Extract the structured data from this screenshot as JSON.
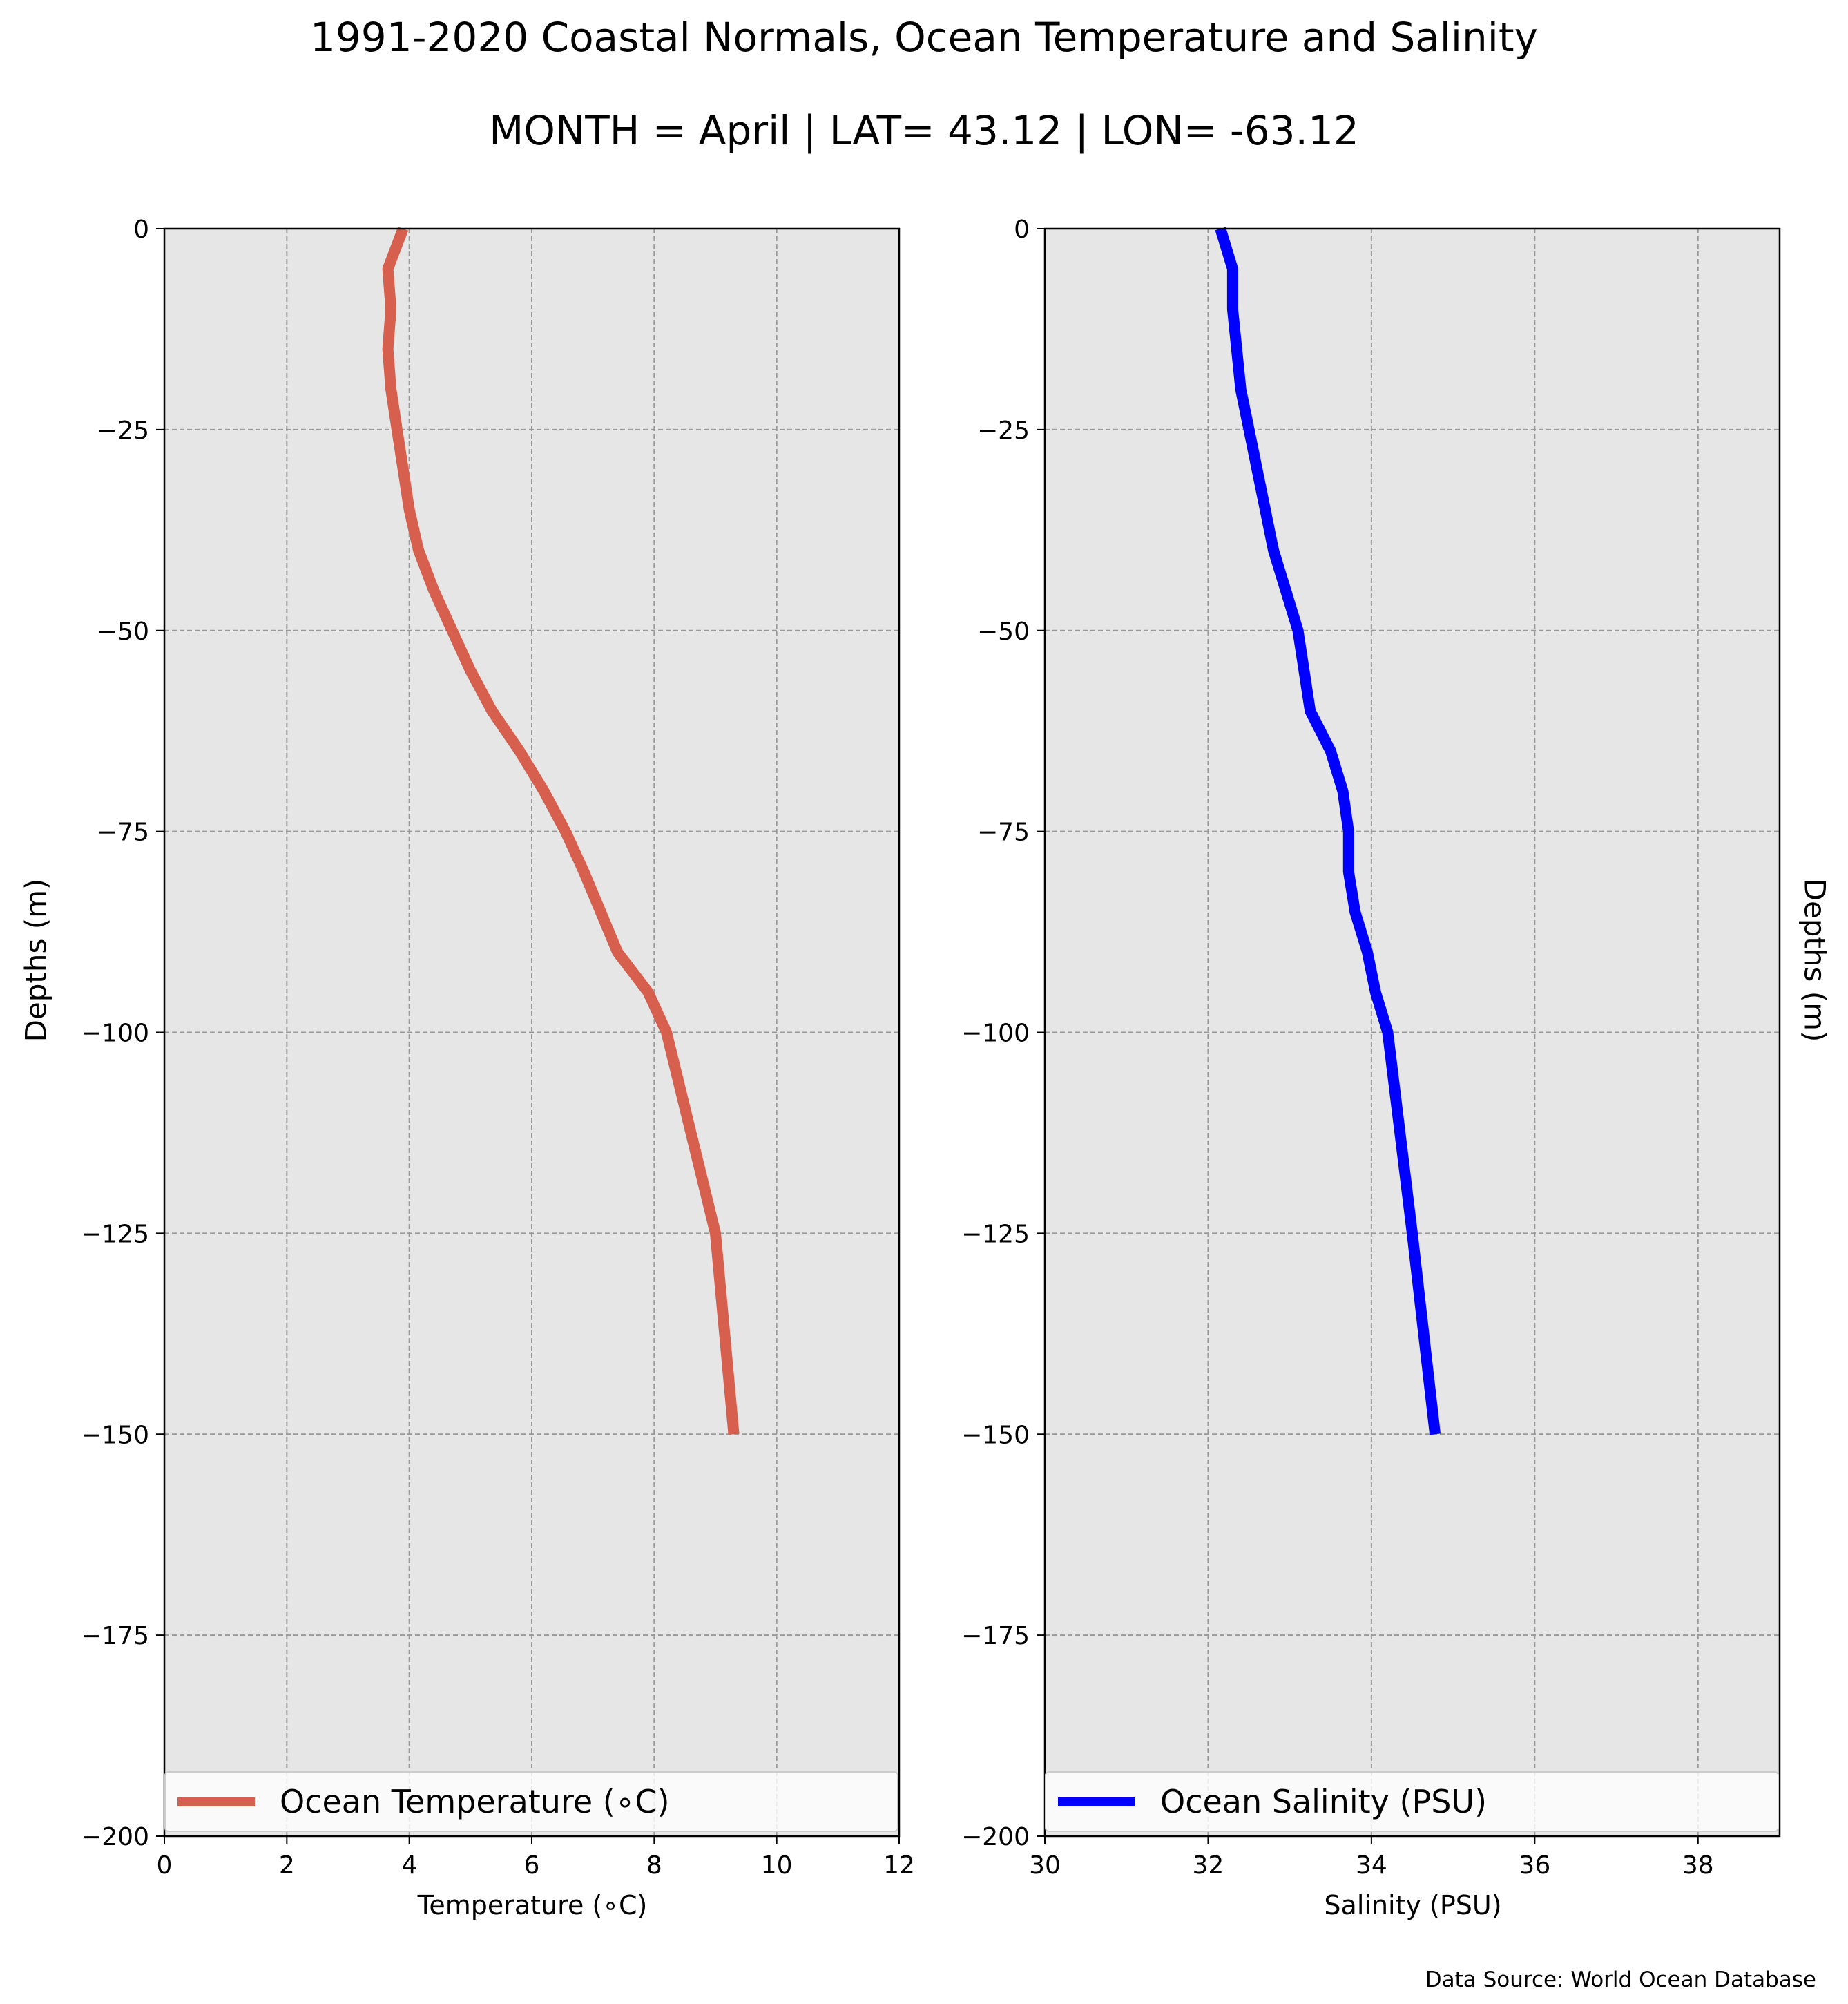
{
  "title": "1991-2020 Coastal Normals, Ocean Temperature and Salinity",
  "subtitle": "MONTH = April | LAT= 43.12 | LON= -63.12",
  "source": "Data Source: World Ocean Database",
  "chart_data": [
    {
      "type": "line",
      "xlabel": "Temperature (∘C)",
      "ylabel": "Depths (m)",
      "xlim": [
        0,
        12
      ],
      "ylim": [
        -200,
        0
      ],
      "x_ticks": [
        "0",
        "2",
        "4",
        "6",
        "8",
        "10",
        "12"
      ],
      "y_ticks": [
        "0",
        "−25",
        "−50",
        "−75",
        "−100",
        "−125",
        "−150",
        "−175",
        "−200"
      ],
      "grid": true,
      "legend_position": "lower center",
      "series": [
        {
          "name": "Ocean Temperature (∘C)",
          "color": "#d65f4e",
          "x": [
            3.9,
            3.65,
            3.7,
            3.65,
            3.7,
            3.8,
            3.9,
            4.0,
            4.15,
            4.4,
            4.7,
            5.0,
            5.35,
            5.8,
            6.2,
            6.55,
            6.85,
            7.4,
            7.9,
            8.2,
            8.6,
            9.0,
            9.3
          ],
          "y": [
            0,
            -5,
            -10,
            -15,
            -20,
            -25,
            -30,
            -35,
            -40,
            -45,
            -50,
            -55,
            -60,
            -65,
            -70,
            -75,
            -80,
            -90,
            -95,
            -100,
            -112.5,
            -125,
            -150
          ]
        }
      ]
    },
    {
      "type": "line",
      "xlabel": "Salinity (PSU)",
      "ylabel": "Depths (m)",
      "xlim": [
        30,
        39
      ],
      "ylim": [
        -200,
        0
      ],
      "x_ticks": [
        "30",
        "32",
        "34",
        "36",
        "38"
      ],
      "y_ticks": [
        "0",
        "−25",
        "−50",
        "−75",
        "−100",
        "−125",
        "−150",
        "−175",
        "−200"
      ],
      "grid": true,
      "legend_position": "lower center",
      "series": [
        {
          "name": "Ocean Salinity (PSU)",
          "color": "#0000ff",
          "x": [
            32.15,
            32.3,
            32.3,
            32.35,
            32.4,
            32.5,
            32.6,
            32.7,
            32.8,
            32.95,
            33.1,
            33.25,
            33.5,
            33.65,
            33.72,
            33.72,
            33.8,
            33.95,
            34.05,
            34.2,
            34.5,
            34.78
          ],
          "y": [
            0,
            -5,
            -10,
            -15,
            -20,
            -25,
            -30,
            -35,
            -40,
            -45,
            -50,
            -60,
            -65,
            -70,
            -75,
            -80,
            -85,
            -90,
            -95,
            -100,
            -125,
            -150
          ]
        }
      ]
    }
  ]
}
